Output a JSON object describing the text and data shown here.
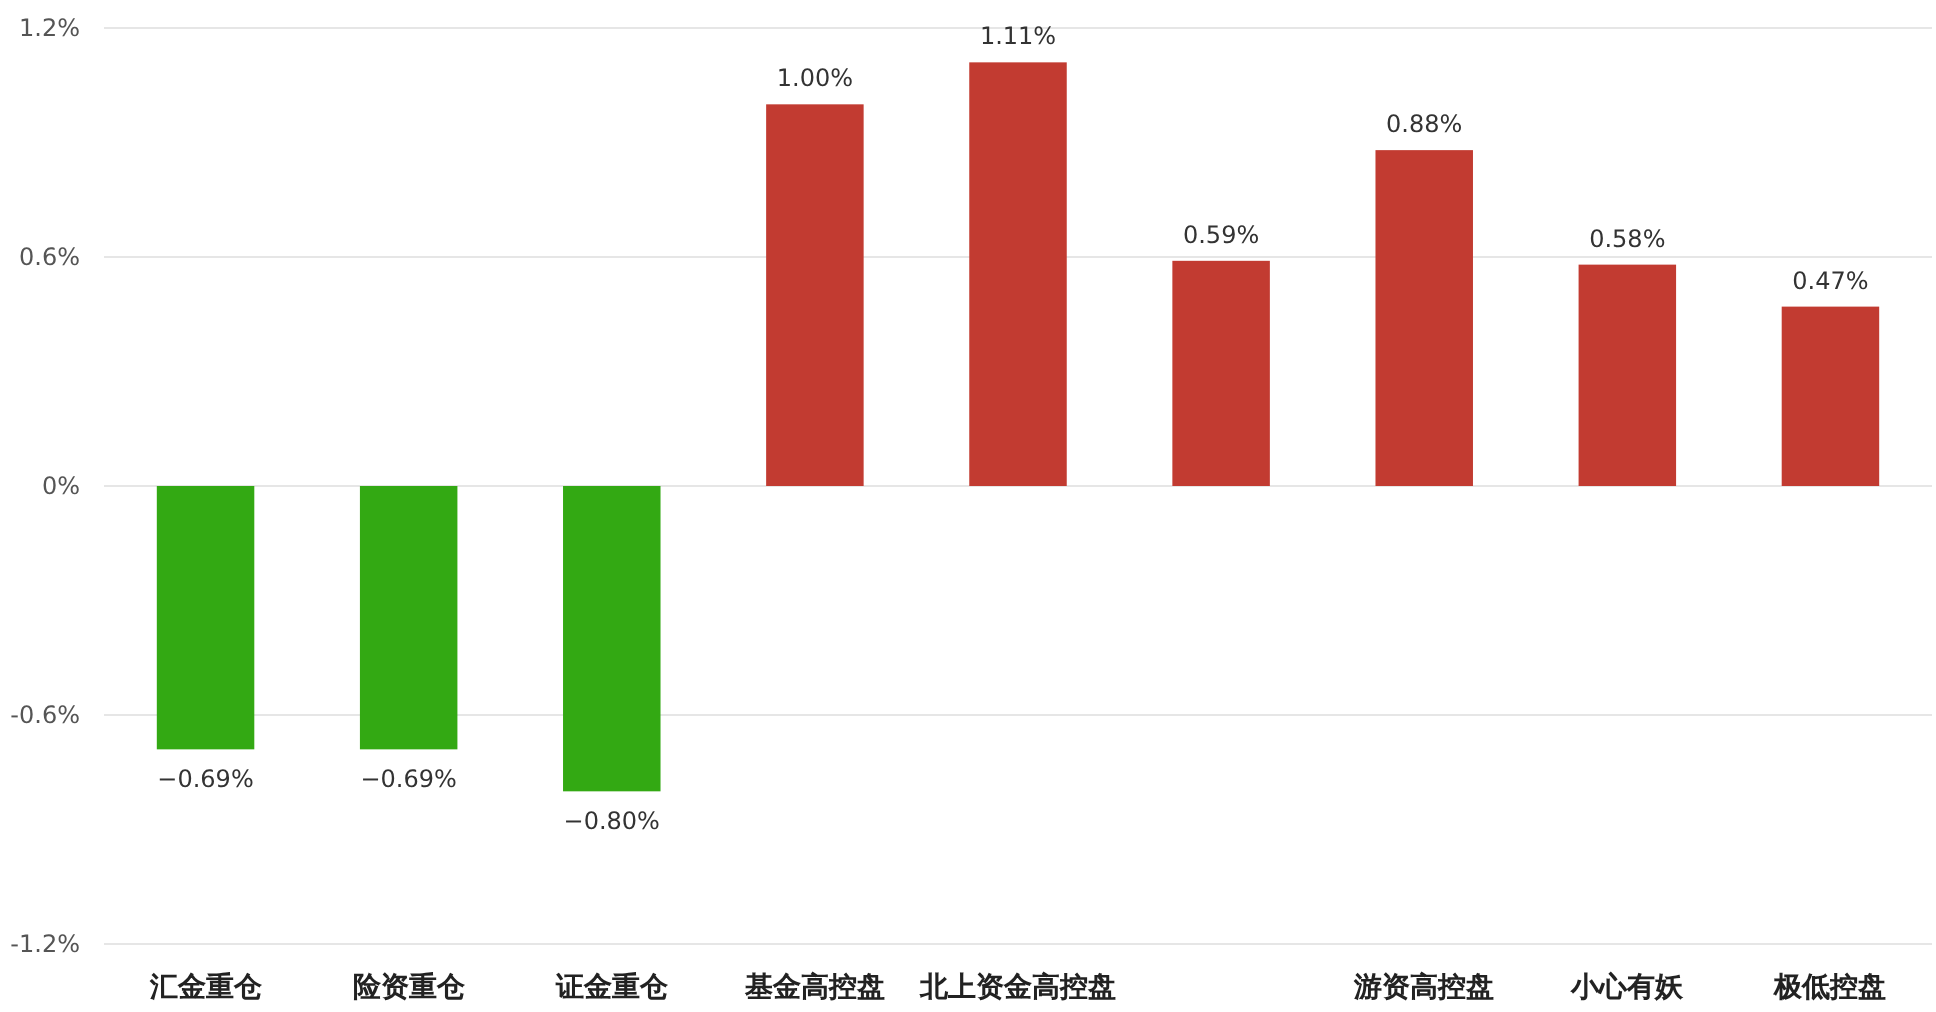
{
  "chart_data": {
    "type": "bar",
    "categories": [
      "汇金重仓",
      "险资重仓",
      "证金重仓",
      "基金高控盘",
      "北上资金高控盘",
      null,
      "游资高控盘",
      "小心有妖",
      "极低控盘"
    ],
    "values": [
      -0.69,
      -0.69,
      -0.8,
      1.0,
      1.11,
      0.59,
      0.88,
      0.58,
      0.47
    ],
    "colors": [
      "#33a913",
      "#33a913",
      "#33a913",
      "#c23b31",
      "#c23b31",
      "#c23b31",
      "#c23b31",
      "#c23b31",
      "#c23b31"
    ],
    "value_labels": [
      "−0.69%",
      "−0.69%",
      "−0.80%",
      "1.00%",
      "1.11%",
      "0.59%",
      "0.88%",
      "0.58%",
      "0.47%"
    ],
    "ylim": [
      -1.2,
      1.2
    ],
    "yticks": [
      {
        "value": -1.2,
        "label": "-1.2%"
      },
      {
        "value": -0.6,
        "label": "-0.6%"
      },
      {
        "value": 0,
        "label": "0%"
      },
      {
        "value": 0.6,
        "label": "0.6%"
      },
      {
        "value": 1.2,
        "label": "1.2%"
      }
    ],
    "grid": "y"
  }
}
